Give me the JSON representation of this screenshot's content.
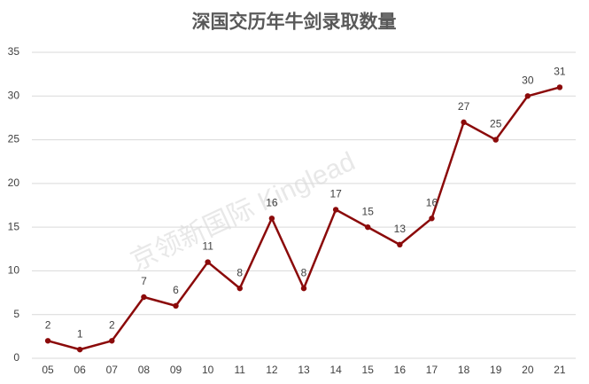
{
  "chart_data": {
    "type": "line",
    "title": "深国交历年牛剑录取数量",
    "watermark": "京领新国际 Kinglead",
    "categories": [
      "05",
      "06",
      "07",
      "08",
      "09",
      "10",
      "11",
      "12",
      "13",
      "14",
      "15",
      "16",
      "17",
      "18",
      "19",
      "20",
      "21"
    ],
    "values": [
      2,
      1,
      2,
      7,
      6,
      11,
      8,
      16,
      8,
      17,
      15,
      13,
      16,
      27,
      25,
      30,
      31
    ],
    "color": "#8b0a0a",
    "ylim": [
      0,
      35
    ],
    "yticks": [
      0,
      5,
      10,
      15,
      20,
      25,
      30,
      35
    ],
    "grid": true,
    "data_labels": true
  }
}
